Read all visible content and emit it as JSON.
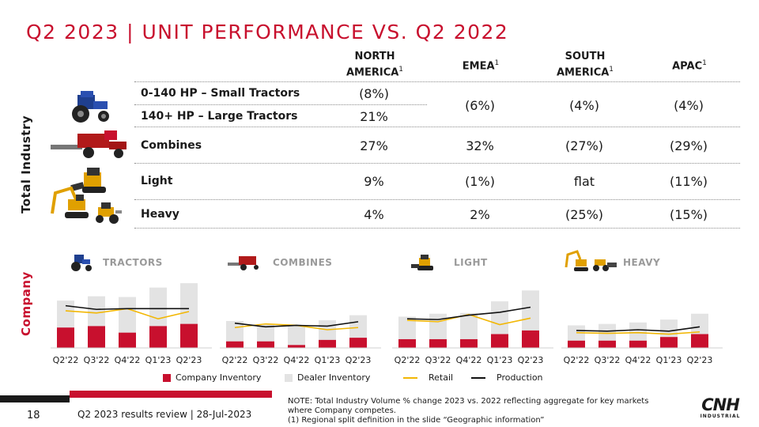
{
  "title": "Q2 2023 | UNIT PERFORMANCE VS. Q2 2022",
  "side_labels": {
    "industry": "Total Industry",
    "company": "Company"
  },
  "columns": [
    {
      "line1": "NORTH",
      "line2": "AMERICA",
      "sup": "1"
    },
    {
      "line1": "EMEA",
      "line2": "",
      "sup": "1"
    },
    {
      "line1": "SOUTH",
      "line2": "AMERICA",
      "sup": "1"
    },
    {
      "line1": "APAC",
      "line2": "",
      "sup": "1"
    }
  ],
  "rows": {
    "small_tractors": {
      "label": "0-140 HP – Small Tractors",
      "na": "(8%)"
    },
    "large_tractors": {
      "label": "140+ HP – Large Tractors",
      "na": "21%"
    },
    "tractors_merged": {
      "emea": "(6%)",
      "sa": "(4%)",
      "apac": "(4%)"
    },
    "combines": {
      "label": "Combines",
      "na": "27%",
      "emea": "32%",
      "sa": "(27%)",
      "apac": "(29%)"
    },
    "light": {
      "label": "Light",
      "na": "9%",
      "emea": "(1%)",
      "sa": "flat",
      "apac": "(11%)"
    },
    "heavy": {
      "label": "Heavy",
      "na": "4%",
      "emea": "2%",
      "sa": "(25%)",
      "apac": "(15%)"
    }
  },
  "charts": [
    {
      "title": "TRACTORS",
      "categories": [
        "Q2'22",
        "Q3'22",
        "Q4'22",
        "Q1'23",
        "Q2'23"
      ],
      "dealer_total": [
        65,
        71,
        70,
        83,
        89
      ],
      "company_inventory": [
        28,
        30,
        21,
        30,
        33
      ],
      "retail": [
        51,
        48,
        54,
        40,
        50
      ],
      "production": [
        58,
        53,
        54,
        54,
        54
      ]
    },
    {
      "title": "COMBINES",
      "categories": [
        "Q2'22",
        "Q3'22",
        "Q4'22",
        "Q1'23",
        "Q2'23"
      ],
      "dealer_total": [
        37,
        33,
        31,
        38,
        45
      ],
      "company_inventory": [
        9,
        9,
        4,
        11,
        14
      ],
      "retail": [
        28,
        33,
        31,
        25,
        28
      ],
      "production": [
        34,
        29,
        31,
        30,
        36
      ]
    },
    {
      "title": "LIGHT",
      "categories": [
        "Q2'22",
        "Q3'22",
        "Q4'22",
        "Q1'23",
        "Q2'23"
      ],
      "dealer_total": [
        43,
        47,
        48,
        64,
        79
      ],
      "company_inventory": [
        12,
        12,
        12,
        19,
        24
      ],
      "retail": [
        38,
        36,
        46,
        32,
        41
      ],
      "production": [
        40,
        39,
        45,
        49,
        56
      ]
    },
    {
      "title": "HEAVY",
      "categories": [
        "Q2'22",
        "Q3'22",
        "Q4'22",
        "Q1'23",
        "Q2'23"
      ],
      "dealer_total": [
        31,
        33,
        35,
        39,
        47
      ],
      "company_inventory": [
        10,
        10,
        10,
        15,
        19
      ],
      "retail": [
        21,
        20,
        21,
        19,
        22
      ],
      "production": [
        24,
        23,
        25,
        23,
        29
      ]
    }
  ],
  "legend": {
    "company_inventory": "Company Inventory",
    "dealer_inventory": "Dealer Inventory",
    "retail": "Retail",
    "production": "Production"
  },
  "colors": {
    "brand_red": "#c8102e",
    "dealer_grey": "#e3e3e3",
    "retail_gold": "#f2b705",
    "production_black": "#111111"
  },
  "footer": {
    "page_number": "18",
    "text": "Q2 2023 results review | 28-Jul-2023",
    "note_1": "NOTE: Total Industry Volume % change 2023 vs. 2022 reflecting aggregate for key markets where Company competes.",
    "note_2": "(1) Regional split definition in the slide “Geographic information”"
  },
  "logo": {
    "main": "CNH",
    "sub": "INDUSTRIAL"
  }
}
